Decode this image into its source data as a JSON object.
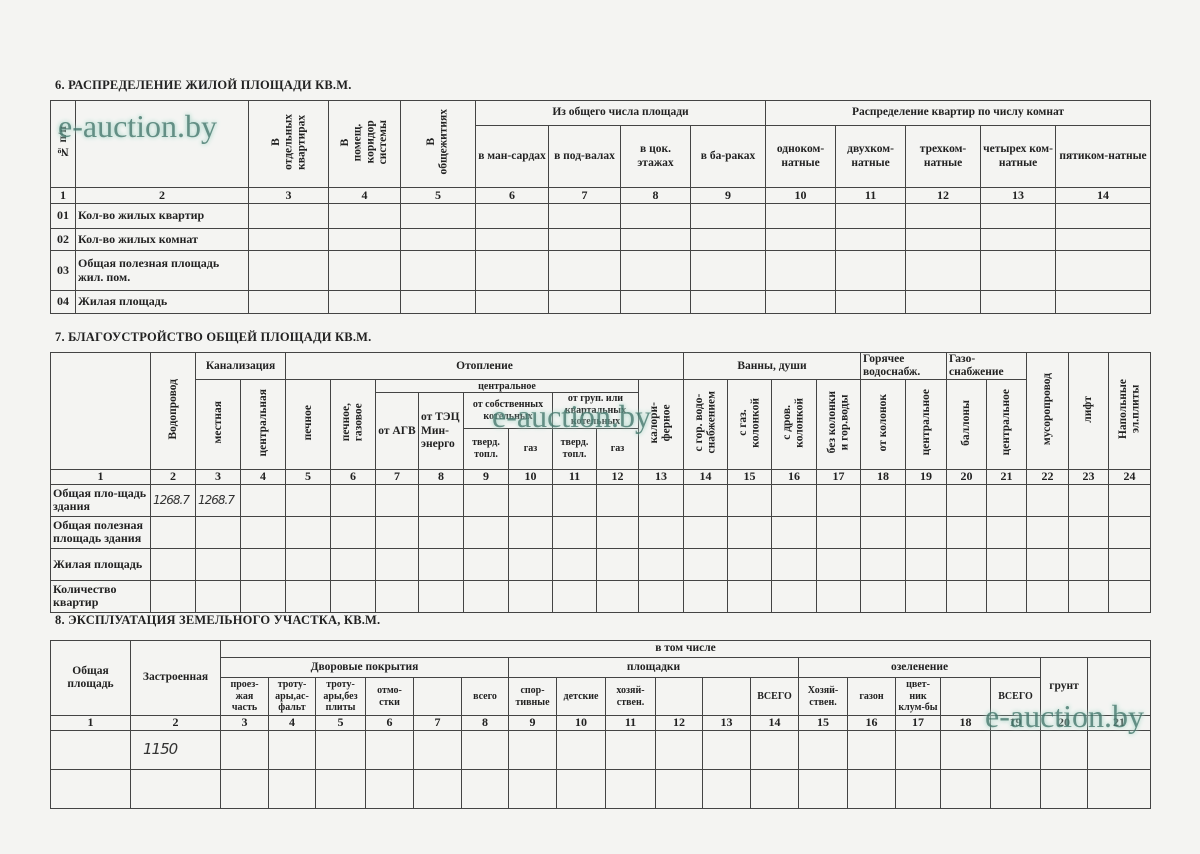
{
  "watermark": "e-auction.by",
  "section6": {
    "title": "6. РАСПРЕДЕЛЕНИЕ  ЖИЛОЙ  ПЛОЩАДИ КВ.М.",
    "head_num": "№ п/п",
    "head_col3": "В\nотдельных\nквартирах",
    "head_col4": "В\nпомещ.\nкоридор\nсистемы",
    "head_col5": "В\nобщежитиях",
    "group_area": "Из общего числа площади",
    "group_rooms": "Распределение квартир по числу комнат",
    "subheads": [
      "в ман-сардах",
      "в под-валах",
      "в цок. этажах",
      "в ба-раках",
      "одноком-натные",
      "двухком-натные",
      "трехком-натные",
      "четырех ком-натные",
      "пятиком-натные"
    ],
    "numbers": [
      "1",
      "2",
      "3",
      "4",
      "5",
      "6",
      "7",
      "8",
      "9",
      "10",
      "11",
      "12",
      "13",
      "14"
    ],
    "rows": [
      {
        "code": "01",
        "label": "Кол-во жилых квартир"
      },
      {
        "code": "02",
        "label": "Кол-во жилых комнат"
      },
      {
        "code": "03",
        "label": "Общая полезная площадь жил. пом."
      },
      {
        "code": "04",
        "label": "Жилая площадь"
      }
    ]
  },
  "section7": {
    "title": "7. БЛАГОУСТРОЙСТВО  ОБЩЕЙ  ПЛОЩАДИ  КВ.М.",
    "water": "Водопровод",
    "sewer": "Канализация",
    "sewer_local": "местная",
    "sewer_central": "центральная",
    "heating": "Отопление",
    "heat_stove": "печное",
    "heat_stove_gas": "печное,\nгазовое",
    "heat_central": "центральное",
    "heat_agv": "от АГВ",
    "heat_tec": "от ТЭЦ Мин-энерго",
    "heat_own": "от собственных котельных",
    "heat_group": "от груп. или квартальных котельных",
    "solid_fuel": "тверд. топл.",
    "gas": "газ",
    "heat_calorifer": "калори-\nферное",
    "baths": "Ванны,  души",
    "bath_hot": "с гор. водо-\nснабжением",
    "bath_gas": "с  газ.\nколонкой",
    "bath_wood": "с  дров.\nколонкой",
    "bath_none": "без колонки\nи гор.воды",
    "hot_water": "Горячее водоснабж.",
    "hw_col": "от колонок",
    "hw_central": "центральное",
    "gas_supply": "Газо-снабжение",
    "gs_bottles": "баллоны",
    "gs_central": "центральное",
    "garbage": "мусоропровод",
    "lift": "лифт",
    "stoves": "Напольные\nэл.плиты",
    "numbers": [
      "1",
      "2",
      "3",
      "4",
      "5",
      "6",
      "7",
      "8",
      "9",
      "10",
      "11",
      "12",
      "13",
      "14",
      "15",
      "16",
      "17",
      "18",
      "19",
      "20",
      "21",
      "22",
      "23",
      "24"
    ],
    "rows": [
      {
        "label": "Общая пло-щадь здания",
        "water": "1268.7",
        "sewer_local": "1268.7"
      },
      {
        "label": "Общая полезная площадь здания"
      },
      {
        "label": "Жилая площадь"
      },
      {
        "label": "Количество квартир"
      }
    ]
  },
  "section8": {
    "title": "8. ЭКСПЛУАТАЦИЯ  ЗЕМЕЛЬНОГО  УЧАСТКА,  КВ.М.",
    "total": "Общая площадь",
    "built": "Застроенная",
    "including": "в  том  числе",
    "yard": "Дворовые  покрытия",
    "yard_cols": [
      "проез-жая часть",
      "троту-ары,ас-фальт",
      "троту-ары,без плиты",
      "отмо-стки",
      "",
      "всего"
    ],
    "grounds": "площадки",
    "grounds_cols": [
      "спор-тивные",
      "детские",
      "хозяй-ствен.",
      "",
      "",
      "ВСЕГО"
    ],
    "green": "озеленение",
    "green_cols": [
      "Хозяй-ствен.",
      "газон",
      "цвет-ник клум-бы",
      "",
      "ВСЕГО"
    ],
    "soil": "грунт",
    "numbers": [
      "1",
      "2",
      "3",
      "4",
      "5",
      "6",
      "7",
      "8",
      "9",
      "10",
      "11",
      "12",
      "13",
      "14",
      "15",
      "16",
      "17",
      "18",
      "19",
      "20",
      "21"
    ],
    "rows": [
      {
        "built": "1150"
      },
      {}
    ]
  }
}
